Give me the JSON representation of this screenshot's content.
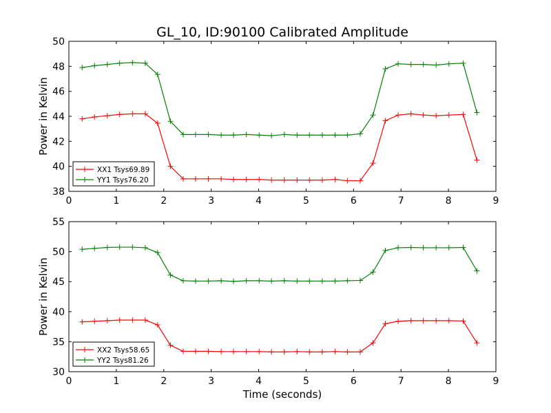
{
  "figure": {
    "title": "GL_10, ID:90100 Calibrated Amplitude",
    "xlabel": "Time (seconds)"
  },
  "chart_data": [
    {
      "type": "line",
      "title": "GL_10, ID:90100 Calibrated Amplitude",
      "xlabel": "",
      "ylabel": "Power in Kelvin",
      "xlim": [
        0,
        9
      ],
      "ylim": [
        38,
        50
      ],
      "xticks": [
        0,
        1,
        2,
        3,
        4,
        5,
        6,
        7,
        8,
        9
      ],
      "yticks": [
        38,
        40,
        42,
        44,
        46,
        48,
        50
      ],
      "grid": false,
      "legend_position": "lower-left",
      "x": [
        0.28,
        0.54,
        0.81,
        1.07,
        1.34,
        1.61,
        1.87,
        2.14,
        2.41,
        2.67,
        2.94,
        3.21,
        3.47,
        3.74,
        4.01,
        4.27,
        4.54,
        4.81,
        5.07,
        5.34,
        5.61,
        5.87,
        6.14,
        6.41,
        6.67,
        6.94,
        7.21,
        7.47,
        7.74,
        8.01,
        8.31,
        8.6
      ],
      "series": [
        {
          "name": "XX1 Tsys69.89",
          "color": "#ff0000",
          "values": [
            43.8,
            43.95,
            44.05,
            44.15,
            44.2,
            44.2,
            43.45,
            40.0,
            39.0,
            39.0,
            39.0,
            39.0,
            38.95,
            38.95,
            38.95,
            38.9,
            38.9,
            38.9,
            38.9,
            38.9,
            38.95,
            38.85,
            38.85,
            40.25,
            43.65,
            44.1,
            44.2,
            44.1,
            44.05,
            44.1,
            44.15,
            40.5
          ]
        },
        {
          "name": "YY1 Tsys76.20",
          "color": "#008000",
          "values": [
            47.9,
            48.05,
            48.15,
            48.25,
            48.3,
            48.25,
            47.35,
            43.6,
            42.55,
            42.55,
            42.55,
            42.5,
            42.5,
            42.55,
            42.5,
            42.45,
            42.55,
            42.5,
            42.5,
            42.5,
            42.5,
            42.5,
            42.6,
            44.1,
            47.8,
            48.2,
            48.15,
            48.15,
            48.1,
            48.2,
            48.25,
            44.3
          ]
        }
      ]
    },
    {
      "type": "line",
      "title": "",
      "xlabel": "Time (seconds)",
      "ylabel": "Power in Kelvin",
      "xlim": [
        0,
        9
      ],
      "ylim": [
        30,
        55
      ],
      "xticks": [
        0,
        1,
        2,
        3,
        4,
        5,
        6,
        7,
        8,
        9
      ],
      "yticks": [
        30,
        35,
        40,
        45,
        50,
        55
      ],
      "grid": false,
      "legend_position": "lower-left",
      "x": [
        0.28,
        0.54,
        0.81,
        1.07,
        1.34,
        1.61,
        1.87,
        2.14,
        2.41,
        2.67,
        2.94,
        3.21,
        3.47,
        3.74,
        4.01,
        4.27,
        4.54,
        4.81,
        5.07,
        5.34,
        5.61,
        5.87,
        6.14,
        6.41,
        6.67,
        6.94,
        7.21,
        7.47,
        7.74,
        8.01,
        8.31,
        8.6
      ],
      "series": [
        {
          "name": "XX2 Tsys58.65",
          "color": "#ff0000",
          "values": [
            38.3,
            38.4,
            38.5,
            38.6,
            38.6,
            38.6,
            37.8,
            34.4,
            33.4,
            33.4,
            33.4,
            33.35,
            33.35,
            33.35,
            33.35,
            33.3,
            33.3,
            33.35,
            33.3,
            33.3,
            33.35,
            33.3,
            33.3,
            34.8,
            38.0,
            38.4,
            38.5,
            38.5,
            38.5,
            38.5,
            38.45,
            34.8
          ]
        },
        {
          "name": "YY2 Tsys81.26",
          "color": "#008000",
          "values": [
            50.4,
            50.55,
            50.7,
            50.75,
            50.75,
            50.65,
            49.85,
            46.1,
            45.15,
            45.1,
            45.1,
            45.15,
            45.05,
            45.15,
            45.15,
            45.1,
            45.15,
            45.1,
            45.1,
            45.1,
            45.1,
            45.15,
            45.2,
            46.6,
            50.2,
            50.65,
            50.7,
            50.65,
            50.65,
            50.65,
            50.7,
            46.8
          ]
        }
      ]
    }
  ]
}
